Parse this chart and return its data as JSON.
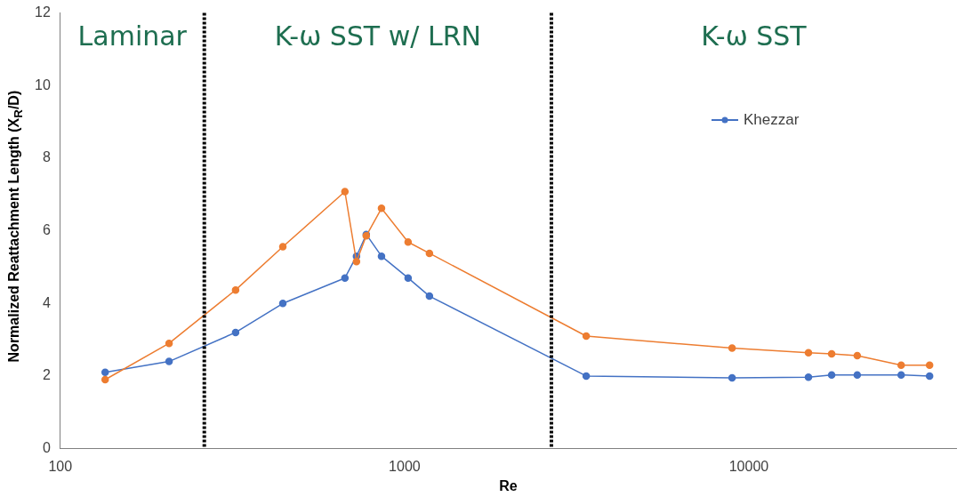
{
  "chart_data": {
    "type": "line",
    "xlabel": "Re",
    "ylabel": "Normalized Reattachment Length (X$_{R}$/D)",
    "log": "x",
    "xlim": [
      100,
      40000
    ],
    "xticks": [
      100,
      1000,
      10000
    ],
    "ylim": [
      0,
      12
    ],
    "yticks": [
      0,
      2,
      4,
      6,
      8,
      10,
      12
    ],
    "grid": false,
    "legend": "top right",
    "marker": "circle",
    "line_style": "solid",
    "annotations": [
      "Laminar",
      "K-ω SST w/ LRN",
      "K-ω SST"
    ],
    "ref_lines": [
      {
        "axis": "x",
        "value": 262,
        "color": "#000000",
        "line_style": "dotted"
      },
      {
        "axis": "x",
        "value": 2670,
        "color": "#000000",
        "line_style": "dotted"
      }
    ],
    "series": [
      {
        "name": "Khezzar",
        "color": "#4472c4",
        "x": [
          135,
          207,
          323,
          443,
          671,
          725,
          774,
          857,
          1024,
          1181,
          3370,
          8940,
          14900,
          17400,
          20650,
          27700,
          33500
        ],
        "values": [
          2.1,
          2.4,
          3.2,
          4.0,
          4.7,
          5.3,
          5.9,
          5.3,
          4.7,
          4.2,
          2.0,
          1.95,
          1.97,
          2.03,
          2.03,
          2.03,
          2.0
        ]
      },
      {
        "color": "#ed7d31",
        "x": [
          135,
          207,
          323,
          443,
          671,
          725,
          774,
          857,
          1024,
          1181,
          3370,
          8940,
          14900,
          17400,
          20650,
          27700,
          33500
        ],
        "values": [
          1.9,
          2.9,
          4.37,
          5.56,
          7.08,
          5.15,
          5.86,
          6.62,
          5.69,
          5.38,
          3.1,
          2.77,
          2.64,
          2.61,
          2.56,
          2.3,
          2.3
        ]
      }
    ]
  }
}
